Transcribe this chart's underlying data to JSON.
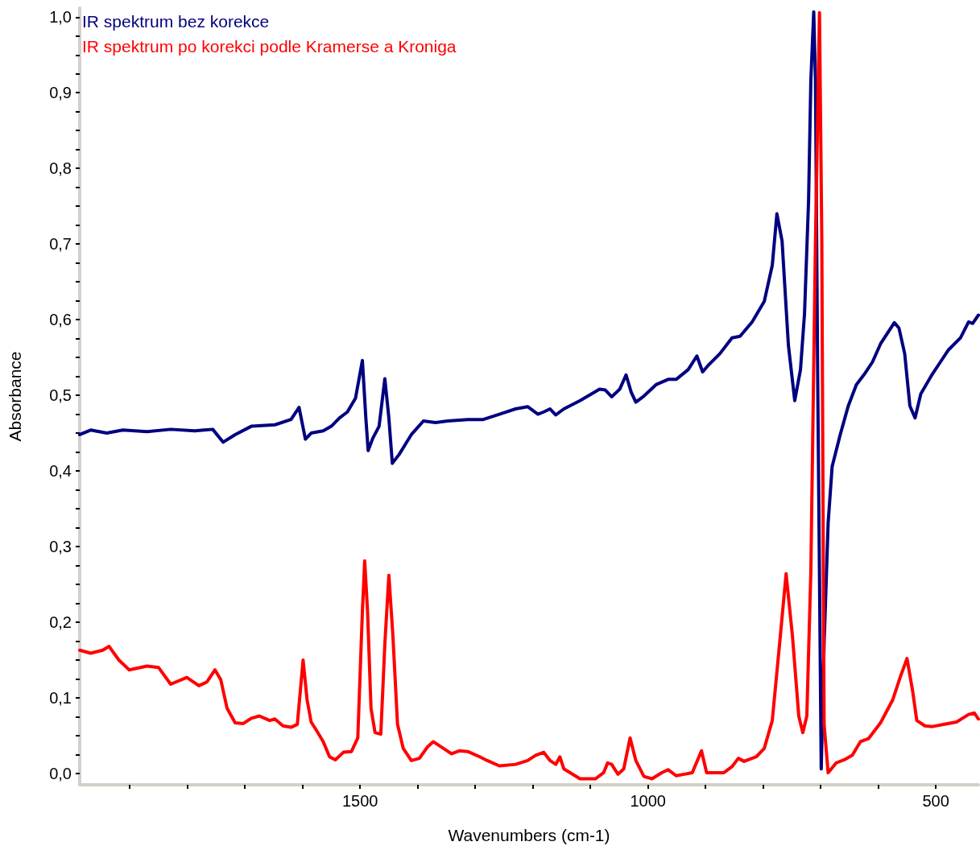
{
  "chart_data": {
    "type": "line",
    "xlabel": "Wavenumbers (cm-1)",
    "ylabel": "Absorbance",
    "legend": "top left",
    "grid": false,
    "marker": "none",
    "line_style": "solid",
    "xlim": [
      1987,
      426
    ],
    "ylim": [
      -0.015,
      1.012
    ],
    "xticks": [
      {
        "value": 1900,
        "label": null
      },
      {
        "value": 1800,
        "label": null
      },
      {
        "value": 1700,
        "label": null
      },
      {
        "value": 1600,
        "label": null
      },
      1500,
      {
        "value": 1400,
        "label": null
      },
      {
        "value": 1300,
        "label": null
      },
      {
        "value": 1200,
        "label": null
      },
      {
        "value": 1100,
        "label": null
      },
      1000,
      {
        "value": 900,
        "label": null
      },
      {
        "value": 800,
        "label": null
      },
      {
        "value": 700,
        "label": null
      },
      {
        "value": 600,
        "label": null
      },
      500
    ],
    "yticks": [
      {
        "value": 0,
        "label": "0,0"
      },
      {
        "value": 0.025,
        "label": null
      },
      {
        "value": 0.05,
        "label": null
      },
      {
        "value": 0.075,
        "label": null
      },
      {
        "value": 0.1,
        "label": "0,1"
      },
      {
        "value": 0.125,
        "label": null
      },
      {
        "value": 0.15,
        "label": null
      },
      {
        "value": 0.175,
        "label": null
      },
      {
        "value": 0.2,
        "label": "0,2"
      },
      {
        "value": 0.225,
        "label": null
      },
      {
        "value": 0.25,
        "label": null
      },
      {
        "value": 0.275,
        "label": null
      },
      {
        "value": 0.3,
        "label": "0,3"
      },
      {
        "value": 0.325,
        "label": null
      },
      {
        "value": 0.35,
        "label": null
      },
      {
        "value": 0.375,
        "label": null
      },
      {
        "value": 0.4,
        "label": "0,4"
      },
      {
        "value": 0.425,
        "label": null
      },
      {
        "value": 0.45,
        "label": null
      },
      {
        "value": 0.475,
        "label": null
      },
      {
        "value": 0.5,
        "label": "0,5"
      },
      {
        "value": 0.525,
        "label": null
      },
      {
        "value": 0.55,
        "label": null
      },
      {
        "value": 0.575,
        "label": null
      },
      {
        "value": 0.6,
        "label": "0,6"
      },
      {
        "value": 0.625,
        "label": null
      },
      {
        "value": 0.65,
        "label": null
      },
      {
        "value": 0.675,
        "label": null
      },
      {
        "value": 0.7,
        "label": "0,7"
      },
      {
        "value": 0.725,
        "label": null
      },
      {
        "value": 0.75,
        "label": null
      },
      {
        "value": 0.775,
        "label": null
      },
      {
        "value": 0.8,
        "label": "0,8"
      },
      {
        "value": 0.825,
        "label": null
      },
      {
        "value": 0.85,
        "label": null
      },
      {
        "value": 0.875,
        "label": null
      },
      {
        "value": 0.9,
        "label": "0,9"
      },
      {
        "value": 0.925,
        "label": null
      },
      {
        "value": 0.95,
        "label": null
      },
      {
        "value": 0.975,
        "label": null
      },
      {
        "value": 1.0,
        "label": "1,0"
      }
    ],
    "series": [
      {
        "name": "IR spektrum bez korekce",
        "color": "#000080",
        "x": [
          1987,
          1968,
          1940,
          1912,
          1870,
          1829,
          1787,
          1756,
          1738,
          1717,
          1689,
          1648,
          1620,
          1606,
          1595,
          1585,
          1564,
          1550,
          1536,
          1522,
          1508,
          1496,
          1490,
          1486,
          1478,
          1467,
          1457,
          1450,
          1444,
          1432,
          1411,
          1390,
          1369,
          1348,
          1313,
          1286,
          1258,
          1230,
          1209,
          1191,
          1181,
          1170,
          1160,
          1146,
          1118,
          1084,
          1074,
          1063,
          1049,
          1038,
          1029,
          1021,
          1007,
          986,
          965,
          951,
          930,
          915,
          905,
          896,
          875,
          854,
          840,
          819,
          798,
          784,
          776,
          767,
          756,
          745,
          735,
          728,
          721,
          717,
          712,
          709,
          705,
          699,
          694,
          687,
          680,
          666,
          652,
          638,
          624,
          610,
          596,
          572,
          564,
          554,
          545,
          536,
          526,
          506,
          492,
          478,
          457,
          443,
          436,
          426
        ],
        "values": [
          0.448,
          0.454,
          0.45,
          0.454,
          0.452,
          0.455,
          0.453,
          0.455,
          0.438,
          0.448,
          0.459,
          0.461,
          0.468,
          0.484,
          0.442,
          0.45,
          0.453,
          0.459,
          0.47,
          0.478,
          0.496,
          0.546,
          0.47,
          0.427,
          0.443,
          0.459,
          0.522,
          0.47,
          0.41,
          0.422,
          0.448,
          0.466,
          0.464,
          0.466,
          0.468,
          0.468,
          0.475,
          0.482,
          0.485,
          0.475,
          0.478,
          0.482,
          0.474,
          0.482,
          0.493,
          0.508,
          0.507,
          0.498,
          0.508,
          0.527,
          0.504,
          0.491,
          0.499,
          0.514,
          0.521,
          0.521,
          0.534,
          0.552,
          0.531,
          0.539,
          0.555,
          0.576,
          0.578,
          0.597,
          0.624,
          0.672,
          0.74,
          0.704,
          0.566,
          0.493,
          0.534,
          0.608,
          0.757,
          0.917,
          1.007,
          0.917,
          0.512,
          0.006,
          0.171,
          0.331,
          0.406,
          0.448,
          0.486,
          0.514,
          0.528,
          0.544,
          0.568,
          0.596,
          0.589,
          0.555,
          0.486,
          0.47,
          0.502,
          0.528,
          0.544,
          0.56,
          0.576,
          0.597,
          0.595,
          0.606
        ]
      },
      {
        "name": "IR spektrum po korekci podle Kramerse a Kroniga",
        "color": "#ff0000",
        "x": [
          1987,
          1968,
          1947,
          1936,
          1919,
          1901,
          1870,
          1850,
          1829,
          1801,
          1780,
          1766,
          1752,
          1742,
          1731,
          1717,
          1703,
          1689,
          1675,
          1657,
          1648,
          1634,
          1620,
          1609,
          1599,
          1592,
          1585,
          1575,
          1564,
          1553,
          1543,
          1529,
          1515,
          1504,
          1496,
          1492,
          1487,
          1481,
          1474,
          1464,
          1457,
          1450,
          1443,
          1435,
          1425,
          1411,
          1397,
          1383,
          1373,
          1355,
          1341,
          1327,
          1313,
          1292,
          1279,
          1258,
          1230,
          1209,
          1195,
          1181,
          1170,
          1160,
          1153,
          1146,
          1118,
          1091,
          1077,
          1070,
          1063,
          1052,
          1042,
          1031,
          1021,
          1007,
          993,
          976,
          965,
          951,
          937,
          923,
          907,
          898,
          868,
          854,
          843,
          833,
          812,
          798,
          784,
          770,
          760,
          749,
          738,
          731,
          724,
          717,
          709,
          702,
          698,
          694,
          687,
          673,
          659,
          645,
          631,
          617,
          596,
          575,
          561,
          550,
          540,
          533,
          519,
          506,
          485,
          464,
          443,
          433,
          426
        ],
        "values": [
          0.163,
          0.159,
          0.163,
          0.168,
          0.15,
          0.137,
          0.142,
          0.14,
          0.118,
          0.127,
          0.116,
          0.121,
          0.137,
          0.124,
          0.086,
          0.067,
          0.066,
          0.073,
          0.076,
          0.07,
          0.072,
          0.063,
          0.061,
          0.065,
          0.15,
          0.097,
          0.068,
          0.056,
          0.042,
          0.022,
          0.018,
          0.028,
          0.029,
          0.047,
          0.214,
          0.281,
          0.214,
          0.086,
          0.054,
          0.052,
          0.171,
          0.262,
          0.182,
          0.065,
          0.033,
          0.017,
          0.02,
          0.035,
          0.042,
          0.033,
          0.026,
          0.03,
          0.029,
          0.022,
          0.017,
          0.01,
          0.012,
          0.017,
          0.024,
          0.028,
          0.017,
          0.012,
          0.022,
          0.006,
          -0.007,
          -0.007,
          0.001,
          0.014,
          0.012,
          -0.001,
          0.006,
          0.047,
          0.017,
          -0.004,
          -0.007,
          0.001,
          0.005,
          -0.003,
          -0.001,
          0.001,
          0.03,
          0.001,
          0.001,
          0.009,
          0.02,
          0.016,
          0.022,
          0.033,
          0.07,
          0.182,
          0.264,
          0.182,
          0.076,
          0.054,
          0.076,
          0.267,
          0.704,
          1.006,
          0.704,
          0.065,
          0.001,
          0.014,
          0.018,
          0.024,
          0.042,
          0.046,
          0.067,
          0.097,
          0.129,
          0.152,
          0.108,
          0.07,
          0.063,
          0.062,
          0.065,
          0.068,
          0.078,
          0.08,
          0.072
        ]
      }
    ]
  }
}
